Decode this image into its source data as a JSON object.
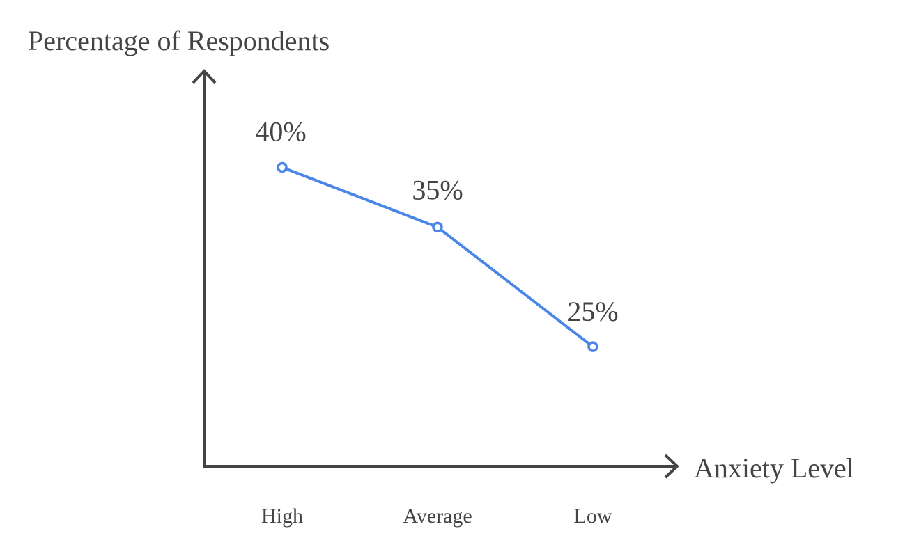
{
  "chart_data": {
    "type": "line",
    "title": "",
    "xlabel": "Anxiety Level",
    "ylabel": "Percentage of Respondents",
    "categories": [
      "High",
      "Average",
      "Low"
    ],
    "values": [
      40,
      35,
      25
    ],
    "data_labels": [
      "40%",
      "35%",
      "25%"
    ],
    "ylim": [
      15,
      48
    ],
    "grid": false,
    "legend": "none",
    "series_color": "#4a86e8",
    "axis_color": "#444444"
  }
}
